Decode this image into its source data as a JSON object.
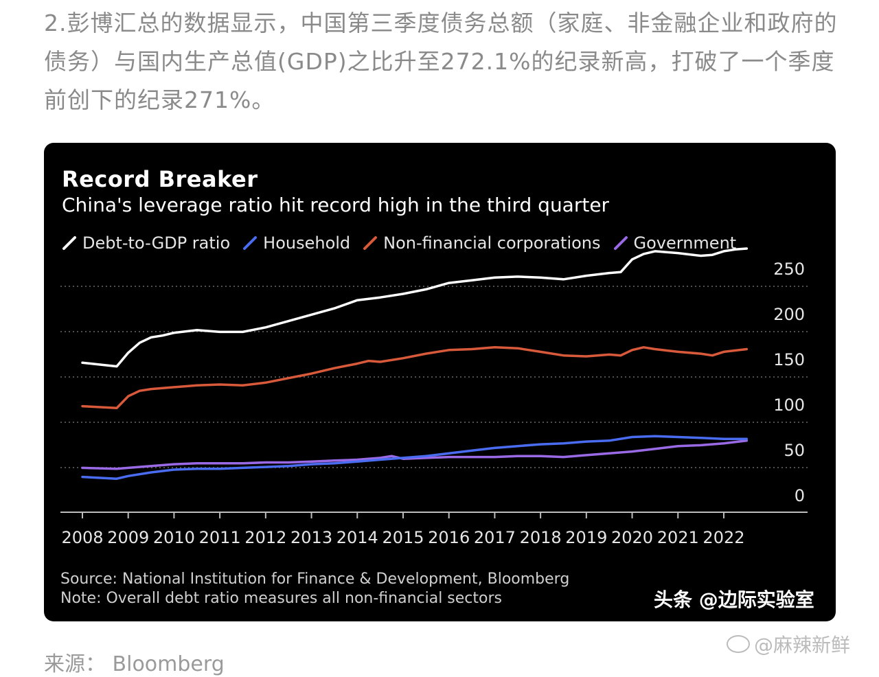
{
  "article": {
    "paragraph": "2.彭博汇总的数据显示，中国第三季度债务总额（家庭、非金融企业和政府的债务）与国内生产总值(GDP)之比升至272.1%的纪录新高，打破了一个季度前创下的纪录271%。"
  },
  "chart_data": {
    "type": "line",
    "title": "Record Breaker",
    "subtitle": "China's leverage ratio hit record high in the third quarter",
    "xlabel": "",
    "ylabel": "",
    "xlim": [
      2008,
      2022.75
    ],
    "ylim": [
      0,
      260
    ],
    "y_ticks": [
      0,
      50,
      100,
      150,
      200,
      250
    ],
    "x_ticks": [
      2008,
      2009,
      2010,
      2011,
      2012,
      2013,
      2014,
      2015,
      2016,
      2017,
      2018,
      2019,
      2020,
      2021,
      2022
    ],
    "grid": "horizontal-dotted",
    "legend_position": "top-left",
    "series": [
      {
        "name": "Debt-to-GDP ratio",
        "color": "#ffffff",
        "x": [
          2008.0,
          2008.75,
          2009.0,
          2009.25,
          2009.5,
          2009.75,
          2010.0,
          2010.5,
          2011.0,
          2011.5,
          2012.0,
          2012.5,
          2013.0,
          2013.5,
          2014.0,
          2014.5,
          2015.0,
          2015.5,
          2016.0,
          2016.5,
          2017.0,
          2017.5,
          2018.0,
          2018.5,
          2019.0,
          2019.5,
          2019.75,
          2020.0,
          2020.25,
          2020.5,
          2021.0,
          2021.5,
          2021.75,
          2022.0,
          2022.25,
          2022.5
        ],
        "values": [
          146,
          142,
          157,
          168,
          174,
          176,
          179,
          182,
          180,
          180,
          185,
          192,
          199,
          206,
          215,
          218,
          222,
          227,
          234,
          237,
          240,
          241,
          240,
          238,
          242,
          245,
          246,
          260,
          266,
          269,
          267,
          264,
          265,
          269,
          271,
          272
        ]
      },
      {
        "name": "Household",
        "color": "#4a6cf0",
        "x": [
          2008.0,
          2008.75,
          2009.0,
          2009.5,
          2010.0,
          2010.5,
          2011.0,
          2011.5,
          2012.0,
          2012.5,
          2013.0,
          2013.5,
          2014.0,
          2014.5,
          2015.0,
          2015.5,
          2016.0,
          2016.5,
          2017.0,
          2017.5,
          2018.0,
          2018.5,
          2019.0,
          2019.5,
          2020.0,
          2020.5,
          2021.0,
          2021.5,
          2022.0,
          2022.5
        ],
        "values": [
          20,
          18,
          21,
          25,
          28,
          29,
          29,
          30,
          31,
          32,
          34,
          35,
          37,
          39,
          41,
          43,
          46,
          49,
          52,
          54,
          56,
          57,
          59,
          60,
          64,
          65,
          64,
          63,
          62,
          62
        ]
      },
      {
        "name": "Non-financial corporations",
        "color": "#d85a3a",
        "x": [
          2008.0,
          2008.75,
          2009.0,
          2009.25,
          2009.5,
          2010.0,
          2010.5,
          2011.0,
          2011.5,
          2012.0,
          2012.5,
          2013.0,
          2013.5,
          2014.0,
          2014.25,
          2014.5,
          2015.0,
          2015.5,
          2016.0,
          2016.5,
          2017.0,
          2017.5,
          2018.0,
          2018.5,
          2019.0,
          2019.5,
          2019.75,
          2020.0,
          2020.25,
          2020.5,
          2021.0,
          2021.5,
          2021.75,
          2022.0,
          2022.5
        ],
        "values": [
          98,
          96,
          109,
          115,
          117,
          119,
          121,
          122,
          121,
          124,
          129,
          134,
          140,
          145,
          148,
          147,
          151,
          156,
          160,
          161,
          163,
          162,
          158,
          154,
          153,
          155,
          154,
          160,
          163,
          161,
          158,
          156,
          154,
          158,
          161
        ]
      },
      {
        "name": "Government",
        "color": "#9a6ae6",
        "x": [
          2008.0,
          2008.75,
          2009.0,
          2009.5,
          2010.0,
          2010.5,
          2011.0,
          2011.5,
          2012.0,
          2012.5,
          2013.0,
          2013.5,
          2014.0,
          2014.5,
          2014.75,
          2015.0,
          2015.5,
          2016.0,
          2016.5,
          2017.0,
          2017.5,
          2018.0,
          2018.5,
          2019.0,
          2019.5,
          2020.0,
          2020.5,
          2021.0,
          2021.5,
          2022.0,
          2022.5
        ],
        "values": [
          30,
          29,
          30,
          32,
          34,
          35,
          35,
          35,
          36,
          36,
          37,
          38,
          39,
          41,
          43,
          40,
          41,
          42,
          42,
          42,
          43,
          43,
          42,
          44,
          46,
          48,
          51,
          54,
          55,
          57,
          60
        ]
      }
    ]
  },
  "source_note": {
    "source": "Source: National Institution for Finance & Development, Bloomberg",
    "note": "Note: Overall debt ratio measures all non-financial sectors"
  },
  "watermarks": {
    "toutiao": "头条 @边际实验室",
    "weibo": "@麻辣新鲜"
  },
  "bottom": {
    "source_label": "来源： Bloomberg"
  }
}
